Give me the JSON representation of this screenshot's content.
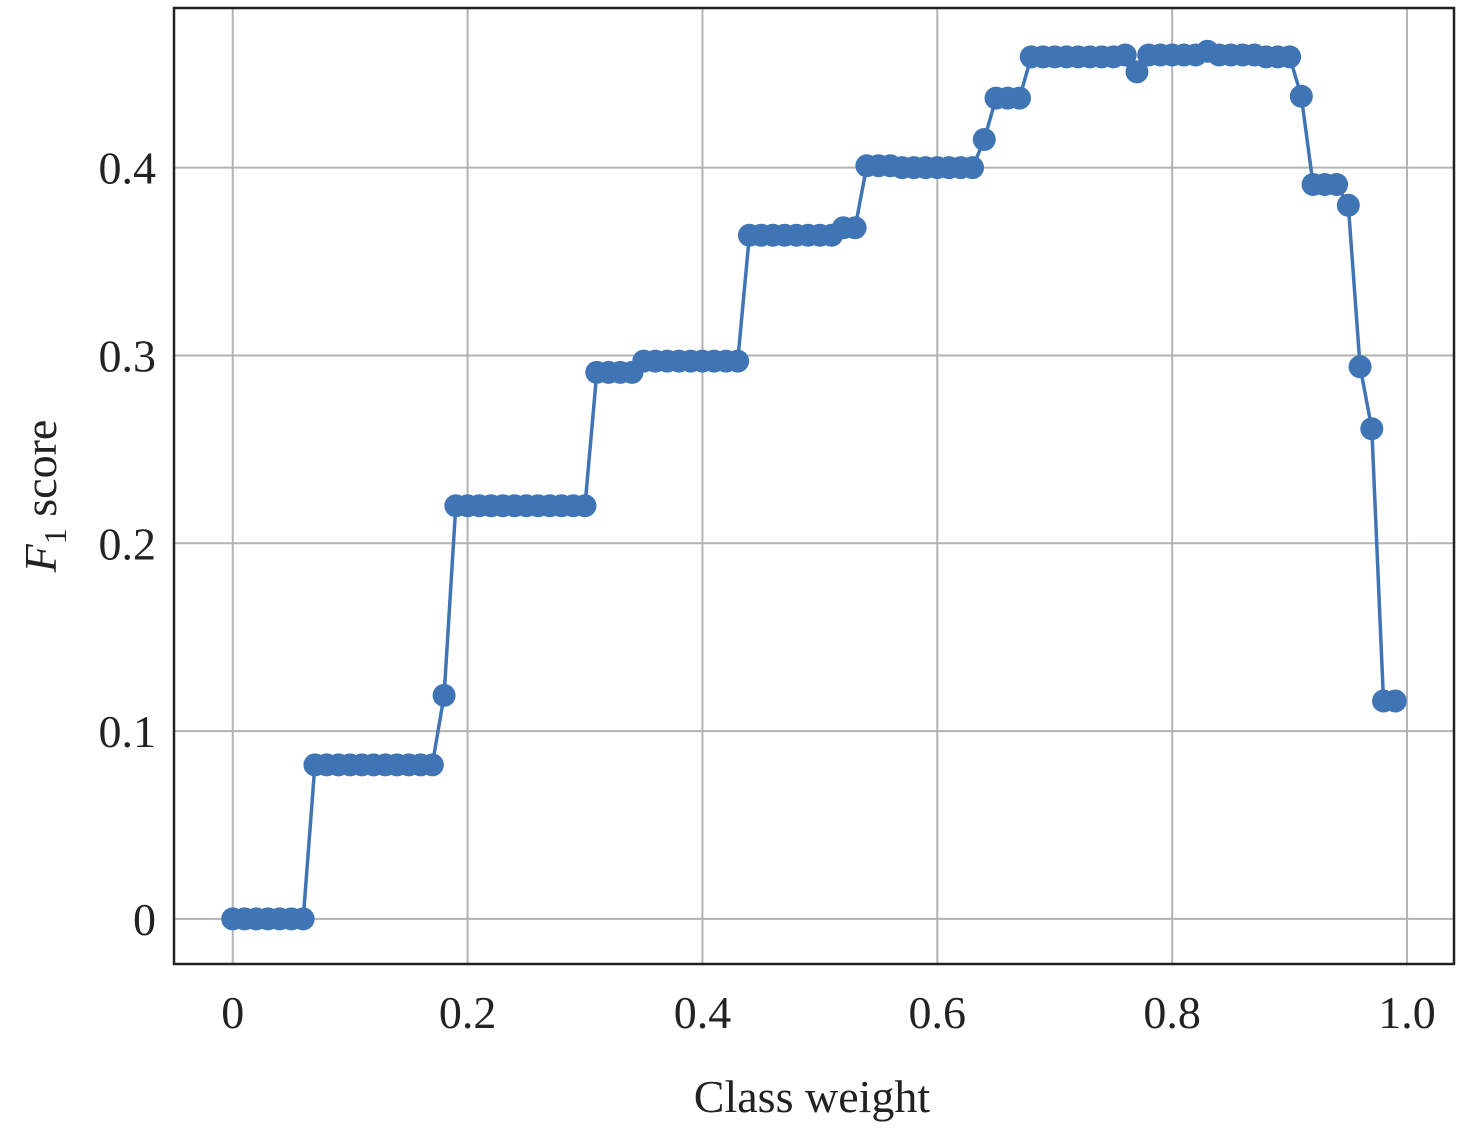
{
  "chart_data": {
    "type": "line",
    "xlabel": "Class weight",
    "ylabel": {
      "symbol": "F",
      "subscript": "1",
      "suffix": " score"
    },
    "xlim": [
      -0.05,
      1.04
    ],
    "ylim": [
      -0.024,
      0.485
    ],
    "xticks": [
      0,
      0.2,
      0.4,
      0.6,
      0.8,
      1.0
    ],
    "xtick_labels": [
      "0",
      "0.2",
      "0.4",
      "0.6",
      "0.8",
      "1.0"
    ],
    "yticks": [
      0,
      0.1,
      0.2,
      0.3,
      0.4
    ],
    "ytick_labels": [
      "0",
      "0.1",
      "0.2",
      "0.3",
      "0.4"
    ],
    "grid": true,
    "legend": "none",
    "colors": {
      "series": "#3f74b5",
      "grid": "#b3b3b3",
      "frame": "#222222"
    },
    "marker": "circle",
    "x": [
      0.0,
      0.01,
      0.02,
      0.03,
      0.04,
      0.05,
      0.06,
      0.07,
      0.08,
      0.09,
      0.1,
      0.11,
      0.12,
      0.13,
      0.14,
      0.15,
      0.16,
      0.17,
      0.18,
      0.19,
      0.2,
      0.21,
      0.22,
      0.23,
      0.24,
      0.25,
      0.26,
      0.27,
      0.28,
      0.29,
      0.3,
      0.31,
      0.32,
      0.33,
      0.34,
      0.35,
      0.36,
      0.37,
      0.38,
      0.39,
      0.4,
      0.41,
      0.42,
      0.43,
      0.44,
      0.45,
      0.46,
      0.47,
      0.48,
      0.49,
      0.5,
      0.51,
      0.52,
      0.53,
      0.54,
      0.55,
      0.56,
      0.57,
      0.58,
      0.59,
      0.6,
      0.61,
      0.62,
      0.63,
      0.64,
      0.65,
      0.66,
      0.67,
      0.68,
      0.69,
      0.7,
      0.71,
      0.72,
      0.73,
      0.74,
      0.75,
      0.76,
      0.77,
      0.78,
      0.79,
      0.8,
      0.81,
      0.82,
      0.83,
      0.84,
      0.85,
      0.86,
      0.87,
      0.88,
      0.89,
      0.9,
      0.91,
      0.92,
      0.93,
      0.94,
      0.95,
      0.96,
      0.97,
      0.98,
      0.99
    ],
    "values": [
      0,
      0,
      0,
      0,
      0,
      0,
      0,
      0.082,
      0.082,
      0.082,
      0.082,
      0.082,
      0.082,
      0.082,
      0.082,
      0.082,
      0.082,
      0.082,
      0.119,
      0.22,
      0.22,
      0.22,
      0.22,
      0.22,
      0.22,
      0.22,
      0.22,
      0.22,
      0.22,
      0.22,
      0.22,
      0.291,
      0.291,
      0.291,
      0.291,
      0.297,
      0.297,
      0.297,
      0.297,
      0.297,
      0.297,
      0.297,
      0.297,
      0.297,
      0.364,
      0.364,
      0.364,
      0.364,
      0.364,
      0.364,
      0.364,
      0.364,
      0.368,
      0.368,
      0.401,
      0.401,
      0.401,
      0.4,
      0.4,
      0.4,
      0.4,
      0.4,
      0.4,
      0.4,
      0.415,
      0.437,
      0.437,
      0.437,
      0.459,
      0.459,
      0.459,
      0.459,
      0.459,
      0.459,
      0.459,
      0.459,
      0.46,
      0.451,
      0.46,
      0.46,
      0.46,
      0.46,
      0.46,
      0.462,
      0.46,
      0.46,
      0.46,
      0.46,
      0.459,
      0.459,
      0.459,
      0.438,
      0.391,
      0.391,
      0.391,
      0.38,
      0.294,
      0.261,
      0.116,
      0.116
    ]
  }
}
